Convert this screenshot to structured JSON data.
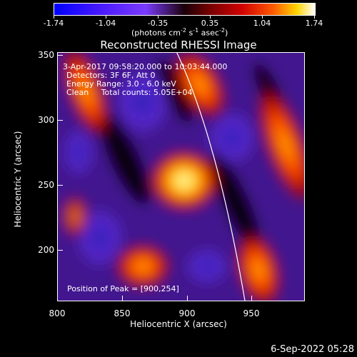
{
  "colorbar": {
    "ticks": [
      "-1.74",
      "-1.04",
      "-0.35",
      "0.35",
      "1.04",
      "1.74"
    ],
    "units_prefix": "(photons cm",
    "units_sup1": "-2",
    "units_mid": " s",
    "units_sup2": "-1",
    "units_mid2": " asec",
    "units_sup3": "-2",
    "units_suffix": ")"
  },
  "title": "Reconstructed RHESSI Image",
  "info": {
    "time": "3-Apr-2017 09:58:20.000 to 10:03:44.000",
    "detectors": "Detectors: 3F 6F, Att 0",
    "energy": "Energy Range: 3.0 - 6.0 keV",
    "clean": "Clean     Total counts: 5.05E+04",
    "peak": "Position of Peak = [900,254]"
  },
  "axes": {
    "xlabel": "Heliocentric X (arcsec)",
    "ylabel": "Heliocentric Y (arcsec)",
    "xticks": [
      "800",
      "850",
      "900",
      "950"
    ],
    "yticks": [
      "350",
      "300",
      "250",
      "200"
    ]
  },
  "footer_date": "6-Sep-2022 05:28"
}
